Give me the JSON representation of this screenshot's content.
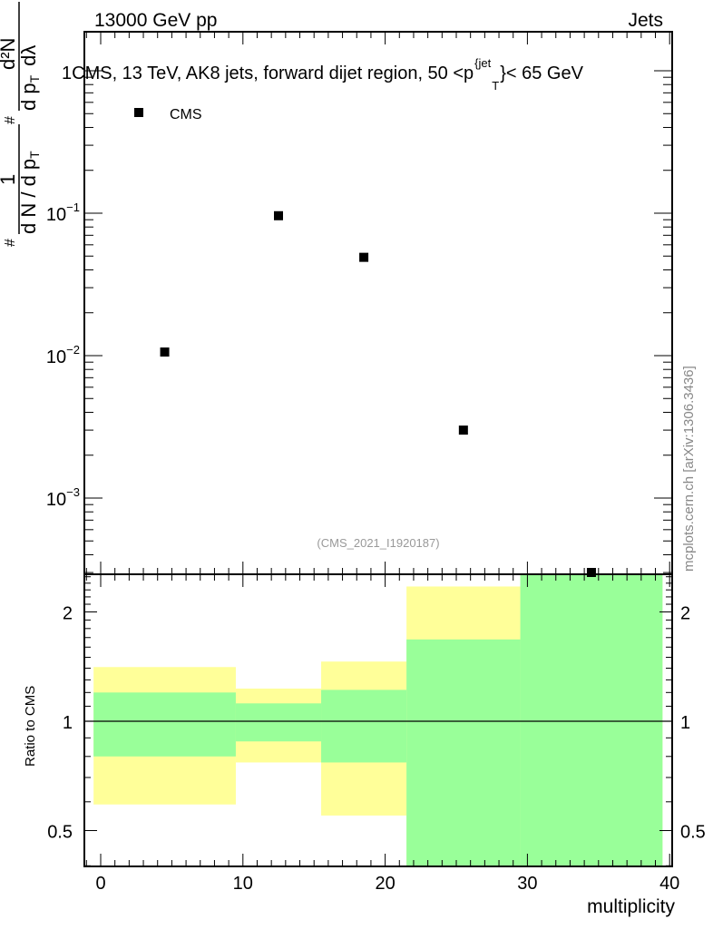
{
  "header": {
    "left": "13000 GeV pp",
    "right": "Jets"
  },
  "watermark": "mcplots.cern.ch [arXiv:1306.3436]",
  "analysis_id": "(CMS_2021_I1920187)",
  "colors": {
    "data": "#000000",
    "band_outer": "#ffff99",
    "band_inner": "#99ff99"
  },
  "chart_data": [
    {
      "type": "scatter",
      "title": {
        "main": "1CMS, 13 TeV, AK8 jets, forward dijet region, 50 <p",
        "sup": "{jet",
        "sub": "T",
        "tail": "}< 65 GeV"
      },
      "ylabel": {
        "hash1": "#",
        "one": "1",
        "den": "d N / d p",
        "den_sub": "T",
        "hash2": "#",
        "num2": "d²N",
        "den2": "d p",
        "den2_sub": "T",
        "dl": "dλ"
      },
      "yscale": "log",
      "ylim": [
        0.00029,
        1.87
      ],
      "xlim": [
        -1.2,
        40.1
      ],
      "yticks": [
        {
          "value": 0.1,
          "base": "10",
          "exp": "−1"
        },
        {
          "value": 0.01,
          "base": "10",
          "exp": "−2"
        },
        {
          "value": 0.001,
          "base": "10",
          "exp": "−3"
        }
      ],
      "legend": {
        "label": "CMS",
        "placement": "top-left"
      },
      "series": [
        {
          "name": "CMS",
          "x": [
            4.5,
            12.5,
            18.5,
            25.5,
            34.5
          ],
          "y": [
            0.0106,
            0.096,
            0.049,
            0.003,
            0.00029
          ]
        }
      ]
    },
    {
      "type": "area",
      "ylabel": "Ratio to CMS",
      "xlabel": "multiplicity",
      "yscale": "log",
      "ylim": [
        0.4,
        2.55
      ],
      "xlim": [
        -1.2,
        40.1
      ],
      "xticks": [
        "0",
        "10",
        "20",
        "30",
        "40"
      ],
      "yticks": [
        {
          "value": 0.5,
          "label": "0.5"
        },
        {
          "value": 1,
          "label": "1"
        },
        {
          "value": 2,
          "label": "2"
        }
      ],
      "bins": [
        {
          "lo": -0.5,
          "hi": 9.5,
          "outer": [
            0.59,
            1.41
          ],
          "inner": [
            0.8,
            1.2
          ]
        },
        {
          "lo": 9.5,
          "hi": 15.5,
          "outer": [
            0.77,
            1.23
          ],
          "inner": [
            0.88,
            1.12
          ]
        },
        {
          "lo": 15.5,
          "hi": 21.5,
          "outer": [
            0.55,
            1.46
          ],
          "inner": [
            0.77,
            1.22
          ]
        },
        {
          "lo": 21.5,
          "hi": 29.5,
          "outer": [
            0.4,
            2.35
          ],
          "inner": [
            0.4,
            1.68
          ]
        },
        {
          "lo": 29.5,
          "hi": 39.5,
          "outer": [
            0.4,
            2.55
          ],
          "inner": [
            0.4,
            2.55
          ]
        }
      ]
    }
  ]
}
